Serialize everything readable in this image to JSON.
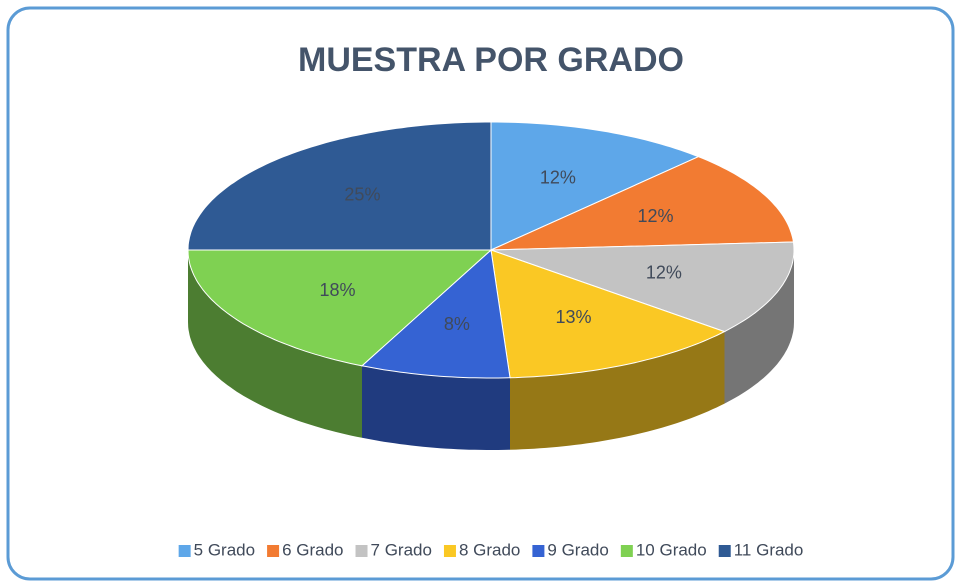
{
  "chart_data": {
    "type": "pie",
    "title": "MUESTRA POR GRADO",
    "categories": [
      "5 Grado",
      "6 Grado",
      "7 Grado",
      "8 Grado",
      "9 Grado",
      "10 Grado",
      "11 Grado"
    ],
    "values": [
      12,
      12,
      12,
      13,
      8,
      18,
      25
    ],
    "value_labels": [
      "12%",
      "12%",
      "12%",
      "13%",
      "8%",
      "18%",
      "25%"
    ],
    "colors": [
      "#5ea7e9",
      "#f27b32",
      "#c3c3c3",
      "#fac824",
      "#3563d3",
      "#7fd152",
      "#2f5a94"
    ],
    "legend": "bottom"
  }
}
